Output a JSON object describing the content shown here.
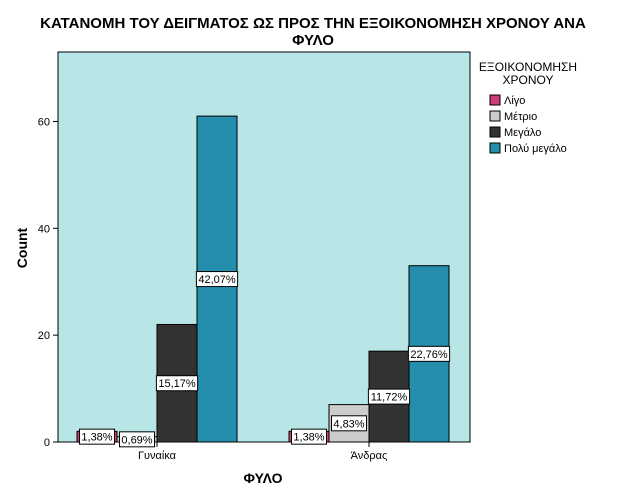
{
  "chart_data": {
    "type": "bar",
    "title_lines": [
      "ΚΑΤΑΝΟΜΗ ΤΟΥ ΔΕΙΓΜΑΤΟΣ ΩΣ ΠΡΟΣ ΤΗΝ ΕΞΟΙΚΟΝΟΜΗΣΗ ΧΡΟΝΟΥ ΑΝΑ",
      "ΦΥΛΟ"
    ],
    "xlabel": "ΦΥΛΟ",
    "ylabel": "Count",
    "ylim": [
      0,
      73
    ],
    "yticks": [
      0,
      20,
      40,
      60
    ],
    "categories": [
      "Γυναίκα",
      "Άνδρας"
    ],
    "legend": {
      "title_lines": [
        "ΕΞΟΙΚΟΝΟΜΗΣΗ",
        "ΧΡΟΝΟΥ"
      ],
      "position": "right"
    },
    "series": [
      {
        "name": "Λίγο",
        "color": "#cc3d7a",
        "values": [
          2,
          2
        ],
        "labels": [
          "1,38%",
          "1,38%"
        ]
      },
      {
        "name": "Μέτριο",
        "color": "#cccccc",
        "values": [
          1,
          7
        ],
        "labels": [
          "0,69%",
          "4,83%"
        ]
      },
      {
        "name": "Μεγάλο",
        "color": "#333333",
        "values": [
          22,
          17
        ],
        "labels": [
          "15,17%",
          "11,72%"
        ]
      },
      {
        "name": "Πολύ μεγάλο",
        "color": "#268ead",
        "values": [
          61,
          33
        ],
        "labels": [
          "42,07%",
          "22,76%"
        ]
      }
    ],
    "plot_background": "#b8e6e6",
    "grid": false
  }
}
